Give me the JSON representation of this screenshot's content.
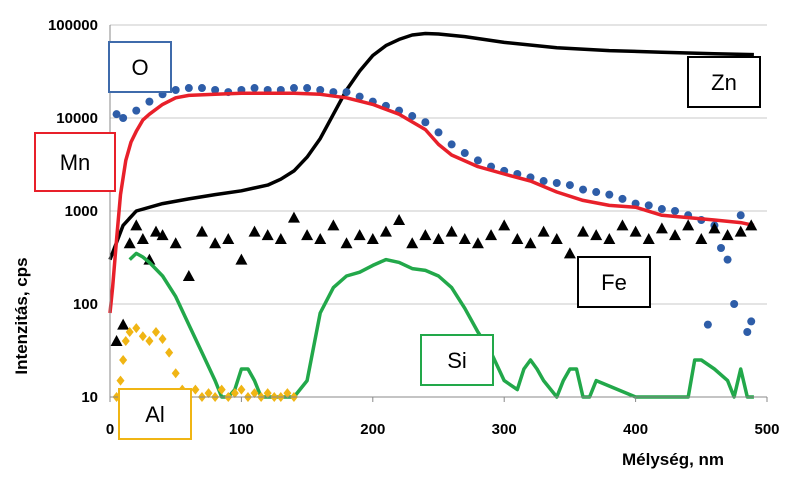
{
  "chart_data": {
    "type": "line",
    "xlabel": "Mélység, nm",
    "ylabel": "Intenzitás, cps",
    "xlim": [
      0,
      500
    ],
    "ylim": [
      10,
      100000
    ],
    "yscale": "log",
    "x_ticks": [
      "0",
      "100",
      "200",
      "300",
      "400",
      "500"
    ],
    "y_ticks": [
      "10",
      "100",
      "1000",
      "10000",
      "100000"
    ],
    "grid": "horizontal",
    "legend": "none",
    "series": [
      {
        "name": "Zn",
        "color": "#000000",
        "marker": "line",
        "x": [
          0,
          10,
          20,
          40,
          60,
          80,
          100,
          120,
          130,
          140,
          150,
          160,
          170,
          180,
          190,
          200,
          210,
          220,
          230,
          240,
          250,
          270,
          300,
          340,
          380,
          420,
          460,
          490
        ],
        "y": [
          300,
          700,
          1000,
          1200,
          1350,
          1500,
          1650,
          1900,
          2200,
          2700,
          3800,
          6000,
          11000,
          20000,
          32000,
          47000,
          60000,
          70000,
          78000,
          81000,
          80000,
          75000,
          65000,
          57000,
          53000,
          51000,
          49000,
          48000
        ]
      },
      {
        "name": "O",
        "color": "#2e5da8",
        "marker": "circle",
        "x": [
          5,
          10,
          20,
          30,
          40,
          50,
          60,
          70,
          80,
          90,
          100,
          110,
          120,
          130,
          140,
          150,
          160,
          170,
          180,
          190,
          200,
          210,
          220,
          230,
          240,
          250,
          260,
          270,
          280,
          290,
          300,
          310,
          320,
          330,
          340,
          350,
          360,
          370,
          380,
          390,
          400,
          410,
          420,
          430,
          440,
          450,
          455,
          460,
          465,
          470,
          475,
          480,
          485,
          488
        ],
        "y": [
          11000,
          10000,
          12000,
          15000,
          18000,
          20000,
          21000,
          21000,
          20000,
          19000,
          20000,
          21000,
          20000,
          20000,
          21000,
          21000,
          20000,
          19000,
          19000,
          17000,
          15000,
          13500,
          12000,
          10500,
          9000,
          7000,
          5200,
          4200,
          3500,
          3000,
          2700,
          2500,
          2300,
          2100,
          2000,
          1900,
          1700,
          1600,
          1500,
          1350,
          1200,
          1150,
          1050,
          1000,
          900,
          800,
          60,
          700,
          400,
          300,
          100,
          900,
          50,
          65
        ]
      },
      {
        "name": "Mn",
        "color": "#e8202a",
        "marker": "line",
        "x": [
          0,
          2,
          5,
          8,
          12,
          16,
          20,
          25,
          30,
          40,
          50,
          60,
          80,
          100,
          120,
          140,
          160,
          180,
          200,
          220,
          240,
          250,
          260,
          280,
          300,
          320,
          340,
          360,
          380,
          400,
          420,
          440,
          460,
          480,
          490
        ],
        "y": [
          80,
          150,
          500,
          1500,
          3500,
          5500,
          7200,
          9500,
          11000,
          14000,
          16500,
          17500,
          18000,
          18500,
          18500,
          18500,
          18000,
          16500,
          14000,
          11000,
          7500,
          5200,
          4000,
          3000,
          2500,
          2100,
          1600,
          1300,
          1150,
          1100,
          900,
          850,
          800,
          750,
          700
        ]
      },
      {
        "name": "Fe",
        "color": "#000000",
        "marker": "triangle",
        "x": [
          5,
          10,
          15,
          20,
          25,
          30,
          35,
          40,
          50,
          60,
          70,
          80,
          90,
          100,
          110,
          120,
          130,
          140,
          150,
          160,
          170,
          180,
          190,
          200,
          210,
          220,
          230,
          240,
          250,
          260,
          270,
          280,
          290,
          300,
          310,
          320,
          330,
          340,
          350,
          360,
          370,
          380,
          390,
          400,
          410,
          420,
          430,
          440,
          450,
          460,
          470,
          480,
          488
        ],
        "y": [
          40,
          60,
          450,
          700,
          500,
          300,
          600,
          550,
          450,
          200,
          600,
          450,
          500,
          300,
          600,
          550,
          500,
          850,
          550,
          500,
          700,
          450,
          550,
          500,
          600,
          800,
          450,
          550,
          500,
          600,
          500,
          450,
          550,
          700,
          500,
          450,
          600,
          500,
          350,
          600,
          550,
          500,
          700,
          600,
          500,
          650,
          550,
          700,
          500,
          650,
          550,
          600,
          700
        ]
      },
      {
        "name": "Si",
        "color": "#22a84a",
        "marker": "line",
        "x": [
          15,
          20,
          25,
          30,
          40,
          50,
          60,
          70,
          80,
          85,
          90,
          95,
          100,
          105,
          110,
          115,
          120,
          125,
          130,
          140,
          150,
          160,
          170,
          180,
          190,
          200,
          210,
          220,
          230,
          240,
          250,
          260,
          270,
          280,
          290,
          300,
          310,
          315,
          320,
          325,
          330,
          340,
          345,
          350,
          355,
          360,
          365,
          370,
          400,
          440,
          445,
          450,
          460,
          470,
          475,
          480,
          485,
          490
        ],
        "y": [
          300,
          350,
          320,
          280,
          200,
          120,
          60,
          30,
          15,
          10,
          10,
          12,
          20,
          20,
          15,
          10,
          10,
          10,
          10,
          10,
          15,
          80,
          150,
          200,
          220,
          260,
          300,
          280,
          240,
          230,
          200,
          150,
          90,
          50,
          30,
          15,
          12,
          20,
          25,
          20,
          15,
          10,
          15,
          20,
          20,
          10,
          10,
          15,
          10,
          10,
          25,
          25,
          20,
          15,
          10,
          20,
          10,
          10
        ]
      },
      {
        "name": "Al",
        "color": "#f0b514",
        "marker": "diamond",
        "x": [
          5,
          8,
          10,
          12,
          15,
          20,
          25,
          30,
          35,
          40,
          45,
          50,
          55,
          60,
          65,
          70,
          75,
          80,
          85,
          90,
          95,
          100,
          105,
          110,
          115,
          120,
          125,
          130,
          135,
          140
        ],
        "y": [
          10,
          15,
          25,
          40,
          50,
          55,
          45,
          40,
          50,
          42,
          30,
          18,
          12,
          10,
          12,
          10,
          11,
          10,
          12,
          10,
          11,
          12,
          10,
          11,
          10,
          11,
          10,
          10,
          11,
          10
        ]
      }
    ],
    "labels": [
      {
        "text": "Zn",
        "color": "#000000"
      },
      {
        "text": "O",
        "color": "#3f6bab"
      },
      {
        "text": "Mn",
        "color": "#e8202a"
      },
      {
        "text": "Fe",
        "color": "#000000"
      },
      {
        "text": "Si",
        "color": "#22a84a"
      },
      {
        "text": "Al",
        "color": "#f0b514"
      }
    ]
  }
}
